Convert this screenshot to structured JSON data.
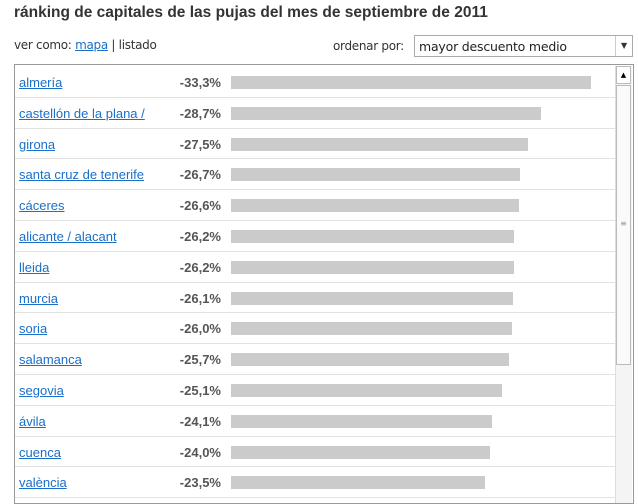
{
  "title": "ránking de capitales de las pujas del mes de septiembre de 2011",
  "view": {
    "label": "ver como:",
    "map_link": "mapa",
    "separator": "|",
    "list": "listado"
  },
  "sort": {
    "label": "ordenar por:",
    "selected": "mayor descuento medio"
  },
  "rows": [
    {
      "city": "almería",
      "label": "-33,3%",
      "value": 33.3
    },
    {
      "city": "castellón de la plana /",
      "label": "-28,7%",
      "value": 28.7
    },
    {
      "city": "girona",
      "label": "-27,5%",
      "value": 27.5
    },
    {
      "city": "santa cruz de tenerife",
      "label": "-26,7%",
      "value": 26.7
    },
    {
      "city": "cáceres",
      "label": "-26,6%",
      "value": 26.6
    },
    {
      "city": "alicante / alacant",
      "label": "-26,2%",
      "value": 26.2
    },
    {
      "city": "lleida",
      "label": "-26,2%",
      "value": 26.2
    },
    {
      "city": "murcia",
      "label": "-26,1%",
      "value": 26.1
    },
    {
      "city": "soria",
      "label": "-26,0%",
      "value": 26.0
    },
    {
      "city": "salamanca",
      "label": "-25,7%",
      "value": 25.7
    },
    {
      "city": "segovia",
      "label": "-25,1%",
      "value": 25.1
    },
    {
      "city": "ávila",
      "label": "-24,1%",
      "value": 24.1
    },
    {
      "city": "cuenca",
      "label": "-24,0%",
      "value": 24.0
    },
    {
      "city": "valència",
      "label": "-23,5%",
      "value": 23.5
    }
  ],
  "colors": {
    "link": "#1a6fc9",
    "bar": "#cbcbcb"
  }
}
